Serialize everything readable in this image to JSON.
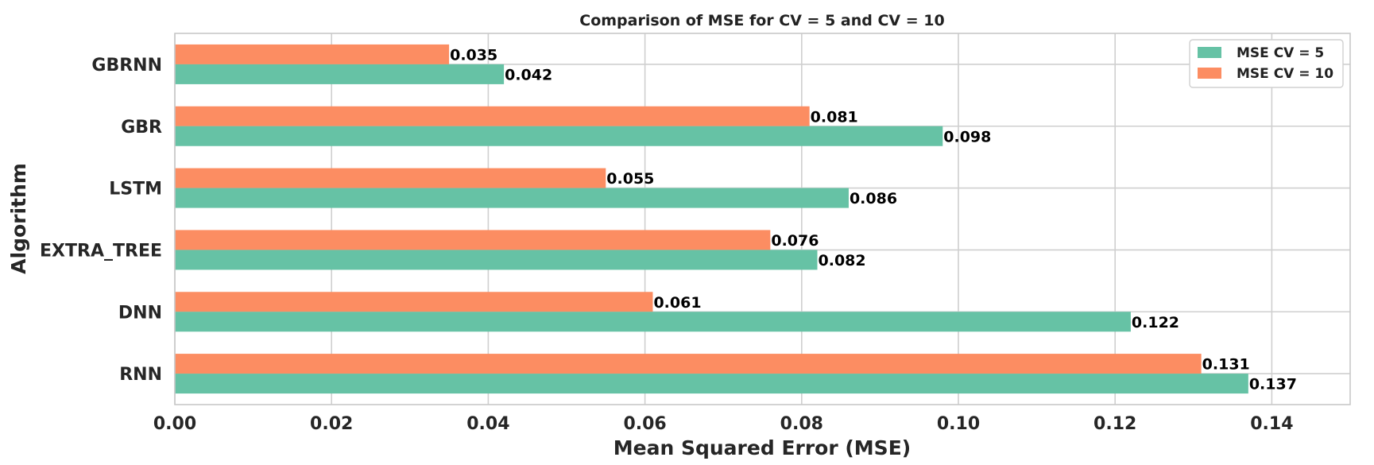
{
  "chart_data": {
    "type": "bar",
    "orientation": "horizontal",
    "title": "Comparison of MSE for CV = 5 and CV = 10",
    "xlabel": "Mean Squared Error (MSE)",
    "ylabel": "Algorithm",
    "categories": [
      "GBRNN",
      "GBR",
      "LSTM",
      "EXTRA_TREE",
      "DNN",
      "RNN"
    ],
    "series": [
      {
        "name": "MSE CV = 5",
        "color": "#66c2a5",
        "values": [
          0.042,
          0.098,
          0.086,
          0.082,
          0.122,
          0.137
        ],
        "labels": [
          "0.042",
          "0.098",
          "0.086",
          "0.082",
          "0.122",
          "0.137"
        ]
      },
      {
        "name": "MSE CV = 10",
        "color": "#fc8d62",
        "values": [
          0.035,
          0.081,
          0.055,
          0.076,
          0.061,
          0.131
        ],
        "labels": [
          "0.035",
          "0.081",
          "0.055",
          "0.076",
          "0.061",
          "0.131"
        ]
      }
    ],
    "xlim": [
      0,
      0.15
    ],
    "xticks": [
      0,
      0.02,
      0.04,
      0.06,
      0.08,
      0.1,
      0.12,
      0.14
    ],
    "xtick_labels": [
      "0.00",
      "0.02",
      "0.04",
      "0.06",
      "0.08",
      "0.10",
      "0.12",
      "0.14"
    ],
    "grid": true,
    "legend_position": "top-right"
  }
}
